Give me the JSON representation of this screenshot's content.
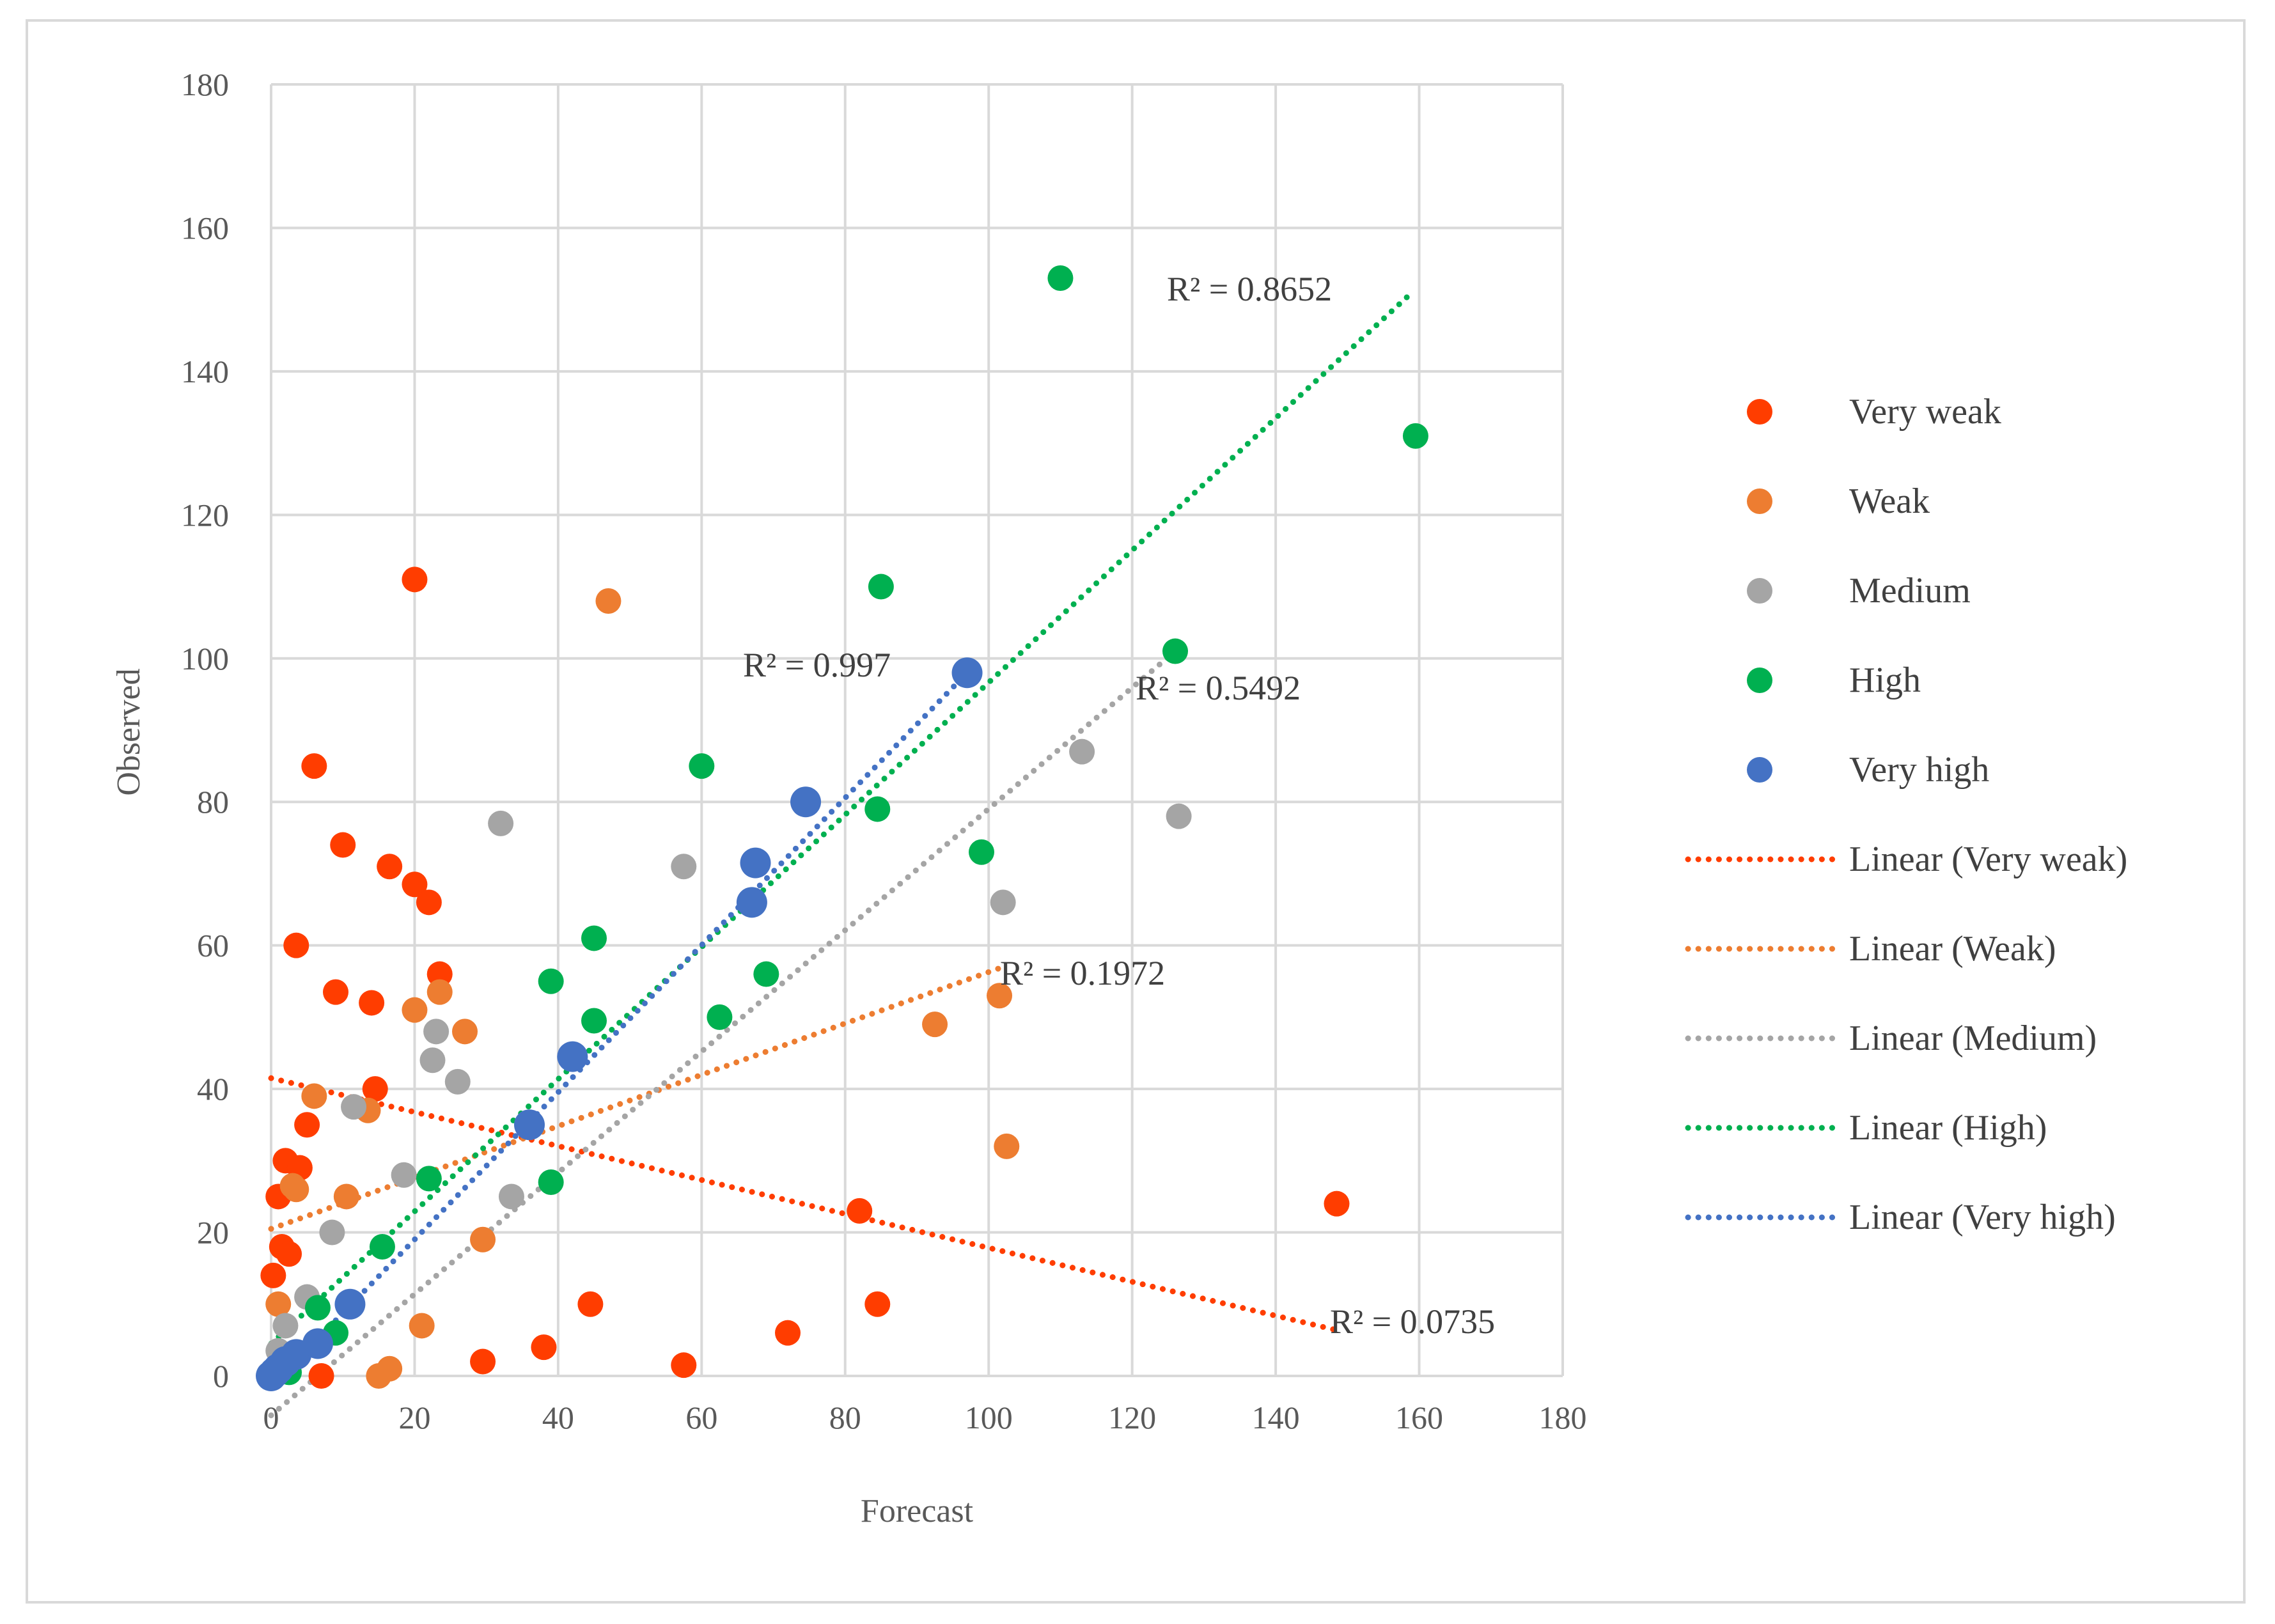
{
  "chart_data": {
    "type": "scatter",
    "title": "",
    "xlabel": "Forecast",
    "ylabel": "Observed",
    "xlim": [
      0,
      180
    ],
    "ylim": [
      0,
      180
    ],
    "xticks": [
      "0",
      "20",
      "40",
      "60",
      "80",
      "100",
      "120",
      "140",
      "160",
      "180"
    ],
    "yticks": [
      "0",
      "20",
      "40",
      "60",
      "80",
      "100",
      "120",
      "140",
      "160",
      "180"
    ],
    "grid": true,
    "legend_position": "right",
    "series": [
      {
        "name": "Very weak",
        "color": "#ff3d00",
        "trend_label": "Linear (Very weak)",
        "r2_label": "R² = 0.0735",
        "trend": [
          [
            0,
            41.5
          ],
          [
            148,
            6.5
          ]
        ],
        "points": [
          [
            0.3,
            14
          ],
          [
            1,
            25
          ],
          [
            1.5,
            18
          ],
          [
            2,
            30
          ],
          [
            2.5,
            17
          ],
          [
            3.5,
            60
          ],
          [
            4,
            29
          ],
          [
            5,
            35
          ],
          [
            6,
            85
          ],
          [
            7,
            0
          ],
          [
            9,
            53.5
          ],
          [
            10,
            74
          ],
          [
            14,
            52
          ],
          [
            14.5,
            40
          ],
          [
            16.5,
            71
          ],
          [
            20,
            68.5
          ],
          [
            20,
            111
          ],
          [
            22,
            66
          ],
          [
            23.5,
            56
          ],
          [
            29.5,
            2
          ],
          [
            38,
            4
          ],
          [
            44.5,
            10
          ],
          [
            57.5,
            1.5
          ],
          [
            72,
            6
          ],
          [
            82,
            23
          ],
          [
            84.5,
            10
          ],
          [
            148.5,
            24
          ]
        ]
      },
      {
        "name": "Weak",
        "color": "#ed7d31",
        "trend_label": "Linear (Weak)",
        "r2_label": "R² = 0.1972",
        "trend": [
          [
            0,
            20.5
          ],
          [
            102,
            57
          ]
        ],
        "points": [
          [
            1,
            10
          ],
          [
            3,
            26.5
          ],
          [
            3.5,
            26
          ],
          [
            6,
            39
          ],
          [
            10.5,
            25
          ],
          [
            13.5,
            37
          ],
          [
            15,
            0
          ],
          [
            16.5,
            1
          ],
          [
            20,
            51
          ],
          [
            21,
            7
          ],
          [
            23.5,
            53.5
          ],
          [
            27,
            48
          ],
          [
            29.5,
            19
          ],
          [
            47,
            108
          ],
          [
            92.5,
            49
          ],
          [
            101.5,
            53
          ],
          [
            102.5,
            32
          ]
        ]
      },
      {
        "name": "Medium",
        "color": "#a5a5a5",
        "trend_label": "Linear (Medium)",
        "r2_label": "R² = 0.5492",
        "trend": [
          [
            0,
            -5.5
          ],
          [
            126,
            101
          ]
        ],
        "points": [
          [
            1,
            3.5
          ],
          [
            2,
            7
          ],
          [
            5,
            11
          ],
          [
            8.5,
            20
          ],
          [
            11.5,
            37.5
          ],
          [
            18.5,
            28
          ],
          [
            22.5,
            44
          ],
          [
            23,
            48
          ],
          [
            26,
            41
          ],
          [
            32,
            77
          ],
          [
            33.5,
            25
          ],
          [
            57.5,
            71
          ],
          [
            102,
            66
          ],
          [
            113,
            87
          ],
          [
            126.5,
            78
          ]
        ]
      },
      {
        "name": "High",
        "color": "#00b050",
        "trend_label": "Linear (High)",
        "r2_label": "R² = 0.8652",
        "trend": [
          [
            0,
            4.5
          ],
          [
            159,
            151
          ]
        ],
        "points": [
          [
            1,
            1
          ],
          [
            2.5,
            0.5
          ],
          [
            6.5,
            9.5
          ],
          [
            9,
            6
          ],
          [
            15.5,
            18
          ],
          [
            22,
            27.5
          ],
          [
            39,
            55
          ],
          [
            39,
            27
          ],
          [
            45,
            61
          ],
          [
            45,
            49.5
          ],
          [
            60,
            85
          ],
          [
            62.5,
            50
          ],
          [
            69,
            56
          ],
          [
            84.5,
            79
          ],
          [
            85,
            110
          ],
          [
            99,
            73
          ],
          [
            110,
            153
          ],
          [
            126,
            101
          ],
          [
            159.5,
            131
          ]
        ]
      },
      {
        "name": "Very high",
        "color": "#4472c4",
        "trend_label": "Linear (Very high)",
        "r2_label": "R² = 0.997",
        "trend": [
          [
            0,
            -1.5
          ],
          [
            97,
            98
          ]
        ],
        "points": [
          [
            0,
            0
          ],
          [
            0.5,
            0.5
          ],
          [
            1,
            1
          ],
          [
            2,
            2
          ],
          [
            3.5,
            3
          ],
          [
            6.5,
            4.5
          ],
          [
            11,
            10
          ],
          [
            36,
            35
          ],
          [
            42,
            44.5
          ],
          [
            67,
            66
          ],
          [
            67.5,
            71.5
          ],
          [
            74.5,
            80
          ],
          [
            97,
            98
          ]
        ]
      }
    ]
  }
}
